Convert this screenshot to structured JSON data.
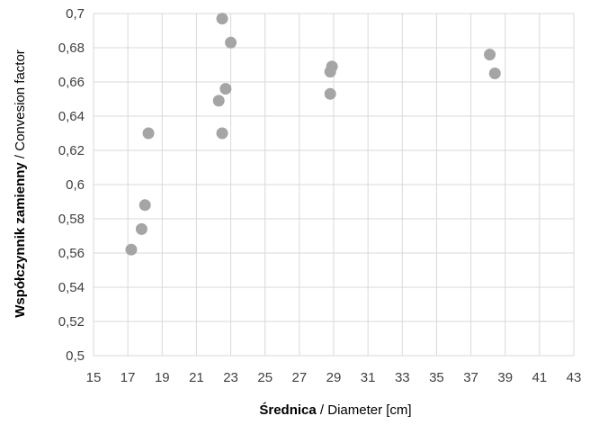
{
  "chart_data": {
    "type": "scatter",
    "title": "",
    "xlabel_bold": "Średnica",
    "xlabel_rest": " / Diameter [cm]",
    "ylabel_bold": "Współczynnik zamienny",
    "ylabel_rest": " / Convesion factor",
    "xlim": [
      15,
      43
    ],
    "ylim": [
      0.5,
      0.7
    ],
    "x_ticks": [
      15,
      17,
      19,
      21,
      23,
      25,
      27,
      29,
      31,
      33,
      35,
      37,
      39,
      41,
      43
    ],
    "y_ticks": [
      0.5,
      0.52,
      0.54,
      0.56,
      0.58,
      0.6,
      0.62,
      0.64,
      0.66,
      0.68,
      0.7
    ],
    "x_tick_labels": [
      "15",
      "17",
      "19",
      "21",
      "23",
      "25",
      "27",
      "29",
      "31",
      "33",
      "35",
      "37",
      "39",
      "41",
      "43"
    ],
    "y_tick_labels": [
      "0,5",
      "0,52",
      "0,54",
      "0,56",
      "0,58",
      "0,6",
      "0,62",
      "0,64",
      "0,66",
      "0,68",
      "0,7"
    ],
    "grid": true,
    "legend": "none",
    "marker_color": "#a5a5a5",
    "grid_color": "#d9d9d9",
    "points": [
      {
        "x": 17.2,
        "y": 0.562
      },
      {
        "x": 17.8,
        "y": 0.574
      },
      {
        "x": 18.0,
        "y": 0.588
      },
      {
        "x": 18.2,
        "y": 0.63
      },
      {
        "x": 22.3,
        "y": 0.649
      },
      {
        "x": 22.5,
        "y": 0.63
      },
      {
        "x": 22.7,
        "y": 0.656
      },
      {
        "x": 22.5,
        "y": 0.697
      },
      {
        "x": 23.0,
        "y": 0.683
      },
      {
        "x": 28.8,
        "y": 0.653
      },
      {
        "x": 28.8,
        "y": 0.666
      },
      {
        "x": 28.9,
        "y": 0.669
      },
      {
        "x": 38.1,
        "y": 0.676
      },
      {
        "x": 38.4,
        "y": 0.665
      }
    ]
  }
}
